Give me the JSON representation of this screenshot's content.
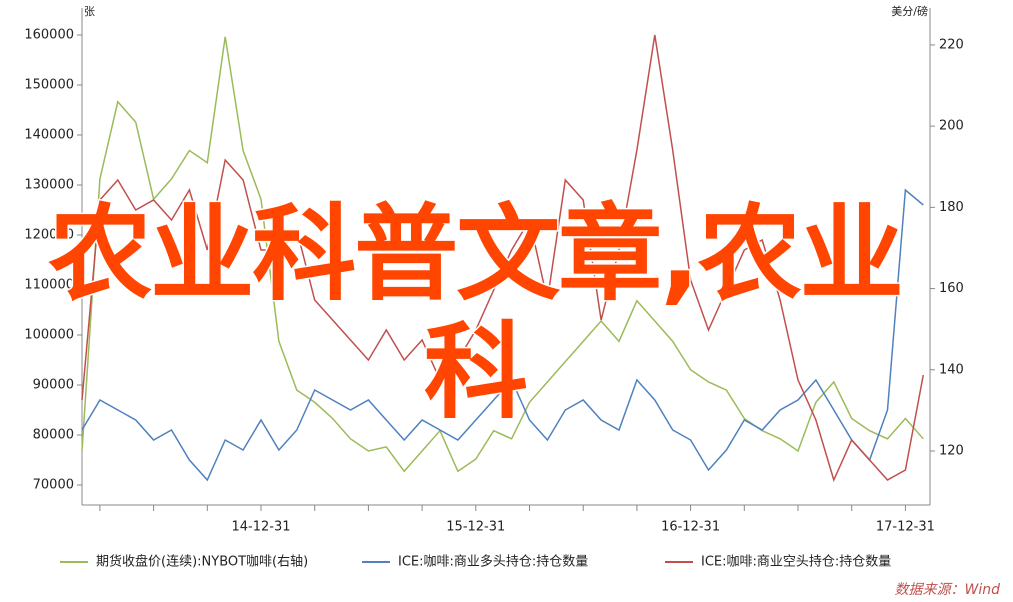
{
  "chart_data": {
    "type": "line",
    "y_label": "张",
    "y2_label": "美分/磅",
    "source": "数据来源：Wind",
    "categories": [
      null,
      null,
      null,
      null,
      null,
      null,
      null,
      null,
      null,
      null,
      "14-12-31",
      null,
      null,
      null,
      null,
      null,
      null,
      null,
      null,
      null,
      null,
      null,
      "15-12-31",
      null,
      null,
      null,
      null,
      null,
      null,
      null,
      null,
      null,
      null,
      null,
      "16-12-31",
      null,
      null,
      null,
      null,
      null,
      null,
      null,
      null,
      null,
      null,
      null,
      "17-12-31",
      null
    ],
    "series": [
      {
        "name": "期货收盘价(连续):NYBOT咖啡(右轴)",
        "color": "#9bbb59",
        "axis": "y2",
        "values": [
          120,
          187,
          206,
          201,
          182,
          187,
          194,
          191,
          222,
          194,
          182,
          147,
          135,
          132,
          128,
          123,
          120,
          121,
          115,
          120,
          125,
          115,
          118,
          125,
          123,
          132,
          137,
          142,
          147,
          152,
          147,
          157,
          152,
          147,
          140,
          137,
          135,
          128,
          125,
          123,
          120,
          132,
          137,
          128,
          125,
          123,
          128,
          123
        ]
      },
      {
        "name": "ICE:咖啡:商业多头持仓:持仓数量",
        "color": "#4f81bd",
        "values": [
          81000,
          87000,
          85000,
          83000,
          79000,
          81000,
          75000,
          71000,
          79000,
          77000,
          83000,
          77000,
          81000,
          89000,
          87000,
          85000,
          87000,
          83000,
          79000,
          83000,
          81000,
          79000,
          83000,
          87000,
          91000,
          83000,
          79000,
          85000,
          87000,
          83000,
          81000,
          91000,
          87000,
          81000,
          79000,
          73000,
          77000,
          83000,
          81000,
          85000,
          87000,
          91000,
          85000,
          79000,
          75000,
          85000,
          129000,
          126000
        ]
      },
      {
        "name": "ICE:咖啡:商业空头持仓:持仓数量",
        "color": "#c0504d",
        "values": [
          87000,
          127000,
          131000,
          125000,
          127000,
          123000,
          129000,
          117000,
          135000,
          131000,
          117000,
          117000,
          121000,
          107000,
          103000,
          99000,
          95000,
          101000,
          95000,
          99000,
          91000,
          95000,
          101000,
          109000,
          117000,
          123000,
          107000,
          131000,
          127000,
          103000,
          117000,
          137000,
          160000,
          137000,
          111000,
          101000,
          109000,
          117000,
          119000,
          107000,
          91000,
          83000,
          71000,
          79000,
          75000,
          71000,
          73000,
          92000
        ]
      }
    ],
    "ylim": [
      66000,
      165000
    ],
    "yticks": [
      70000,
      80000,
      90000,
      100000,
      110000,
      120000,
      130000,
      140000,
      150000,
      160000
    ],
    "y2lim": [
      106.7,
      228.6
    ],
    "y2ticks": [
      120,
      140,
      160,
      180,
      200,
      220
    ]
  },
  "overlay": "农业科普文章,农业科"
}
